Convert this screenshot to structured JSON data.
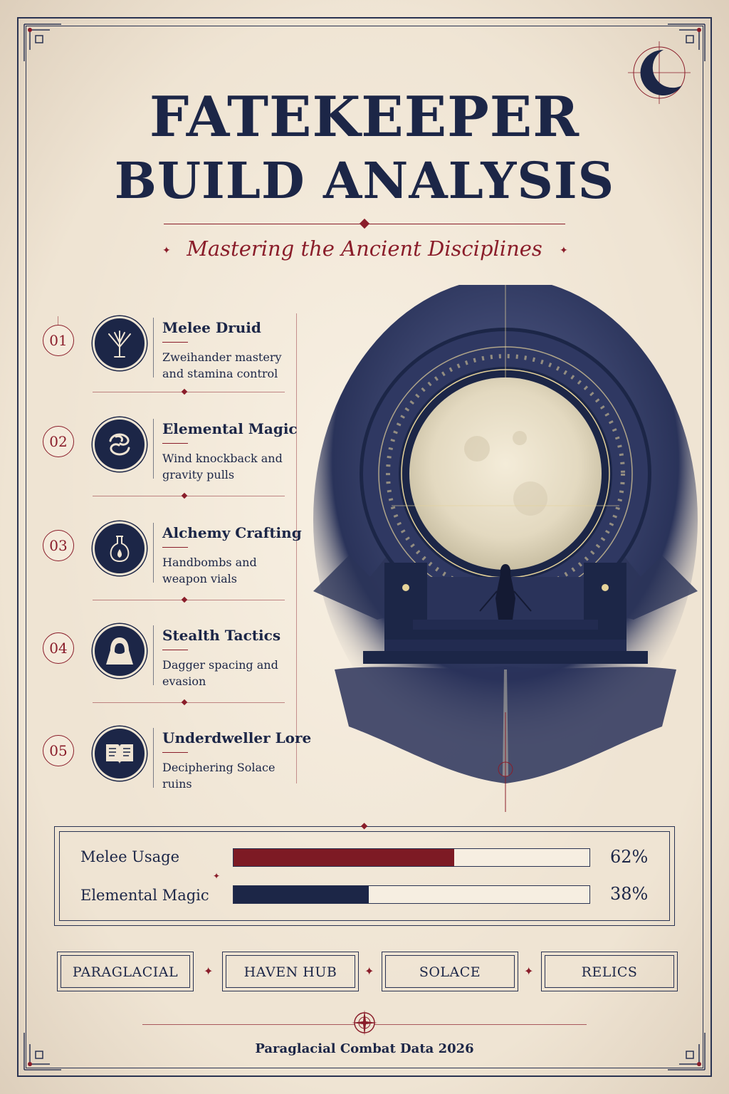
{
  "header": {
    "title_line1": "FATEKEEPER",
    "title_line2": "BUILD ANALYSIS",
    "subtitle": "Mastering the Ancient Disciplines"
  },
  "disciplines": [
    {
      "number": "01",
      "title": "Melee Druid",
      "desc": "Zweihander mastery and stamina control",
      "icon": "tree-icon"
    },
    {
      "number": "02",
      "title": "Elemental Magic",
      "desc": "Wind knockback and gravity pulls",
      "icon": "wind-swirl-icon"
    },
    {
      "number": "03",
      "title": "Alchemy Crafting",
      "desc": "Handbombs and weapon vials",
      "icon": "potion-flask-icon"
    },
    {
      "number": "04",
      "title": "Stealth Tactics",
      "desc": "Dagger spacing and evasion",
      "icon": "hooded-figure-icon"
    },
    {
      "number": "05",
      "title": "Underdweller Lore",
      "desc": "Deciphering Solace ruins",
      "icon": "open-book-icon"
    }
  ],
  "stats": [
    {
      "label": "Melee Usage",
      "value": 62,
      "display": "62%",
      "color": "#7d1a24"
    },
    {
      "label": "Elemental Magic",
      "value": 38,
      "display": "38%",
      "color": "#1c2647"
    }
  ],
  "tags": [
    "PARAGLACIAL",
    "HAVEN HUB",
    "SOLACE",
    "RELICS"
  ],
  "footer": "Paraglacial Combat Data 2026",
  "colors": {
    "navy": "#1c2647",
    "crimson": "#8a1d2a",
    "parchment": "#efe4d3"
  }
}
